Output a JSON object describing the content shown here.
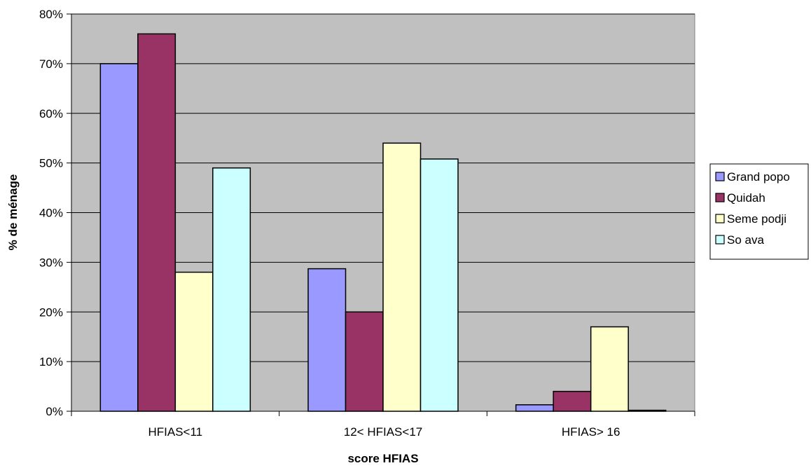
{
  "chart_data": {
    "type": "bar",
    "title": "",
    "xlabel": "score HFIAS",
    "ylabel": "% de ménage",
    "categories": [
      "HFIAS<11",
      "12< HFIAS<17",
      "HFIAS> 16"
    ],
    "series": [
      {
        "name": "Grand popo",
        "color": "#9999ff",
        "values": [
          70,
          28.7,
          1.3
        ]
      },
      {
        "name": "Quidah",
        "color": "#993366",
        "values": [
          76,
          20,
          4
        ]
      },
      {
        "name": "Seme podji",
        "color": "#ffffcc",
        "values": [
          28,
          54,
          17
        ]
      },
      {
        "name": "So ava",
        "color": "#ccffff",
        "values": [
          49,
          50.8,
          0.2
        ]
      }
    ],
    "ylim": [
      0,
      80
    ],
    "yticks": [
      0,
      10,
      20,
      30,
      40,
      50,
      60,
      70,
      80
    ],
    "ytick_labels": [
      "0%",
      "10%",
      "20%",
      "30%",
      "40%",
      "50%",
      "60%",
      "70%",
      "80%"
    ],
    "grid": true,
    "legend_position": "right",
    "plot_background": "#c0c0c0"
  }
}
